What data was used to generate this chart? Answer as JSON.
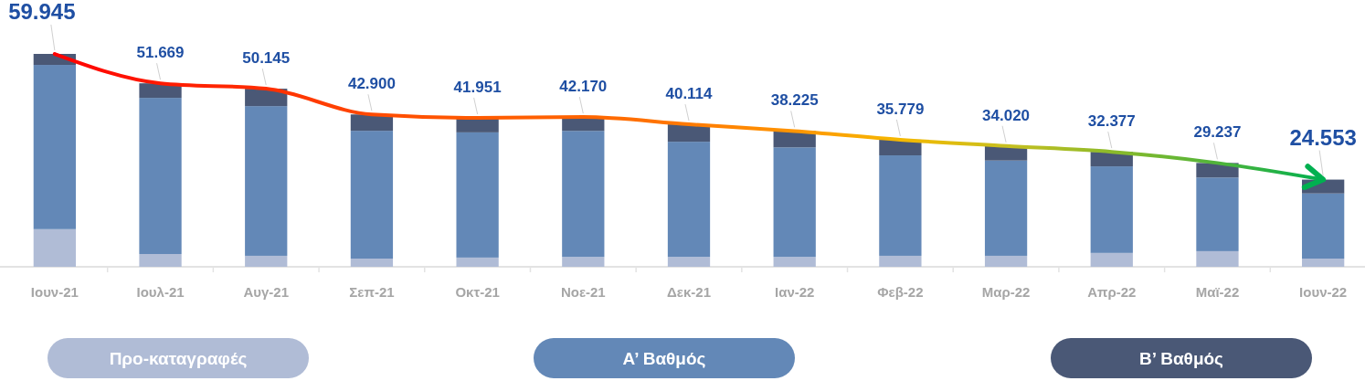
{
  "chart_data": {
    "type": "bar",
    "stacked": true,
    "legend": "bottom",
    "categories": [
      "Ιουν-21",
      "Ιουλ-21",
      "Αυγ-21",
      "Σεπ-21",
      "Οκτ-21",
      "Νοε-21",
      "Δεκ-21",
      "Ιαν-22",
      "Φεβ-22",
      "Μαρ-22",
      "Απρ-22",
      "Μαϊ-22",
      "Ιουν-22"
    ],
    "series": [
      {
        "name": "Προ-καταγραφές",
        "color": "#b0bcd6",
        "values": [
          10.6,
          3.6,
          3.1,
          2.3,
          2.6,
          2.8,
          2.8,
          2.8,
          3.1,
          3.1,
          3.9,
          4.4,
          2.3
        ]
      },
      {
        "name": "Α’ Βαθμός",
        "color": "#6388b7",
        "values": [
          46.245,
          43.969,
          42.145,
          36.0,
          35.251,
          35.47,
          32.414,
          30.825,
          28.279,
          26.82,
          24.377,
          20.737,
          18.353
        ]
      },
      {
        "name": "Β’ Βαθμός",
        "color": "#4a5876",
        "values": [
          3.1,
          4.1,
          4.9,
          4.6,
          4.1,
          3.9,
          4.9,
          4.6,
          4.4,
          4.1,
          4.1,
          4.1,
          3.9
        ]
      },
      {
        "type": "line",
        "colors": [
          "#ff0000",
          "#ff1a00",
          "#ff2e00",
          "#ff4a00",
          "#ff5a00",
          "#ff6400",
          "#ff7a00",
          "#ff9500",
          "#f5b800",
          "#c8c020",
          "#8cba2a",
          "#50b43a",
          "#00b050"
        ],
        "values": [
          59.945,
          51.669,
          50.145,
          42.9,
          41.951,
          42.17,
          40.114,
          38.225,
          35.779,
          34.02,
          32.377,
          29.237,
          24.553
        ],
        "value_labels": [
          "59.945",
          "51.669",
          "50.145",
          "42.900",
          "41.951",
          "42.170",
          "40.114",
          "38.225",
          "35.779",
          "34.020",
          "32.377",
          "29.237",
          "24.553"
        ]
      }
    ]
  }
}
